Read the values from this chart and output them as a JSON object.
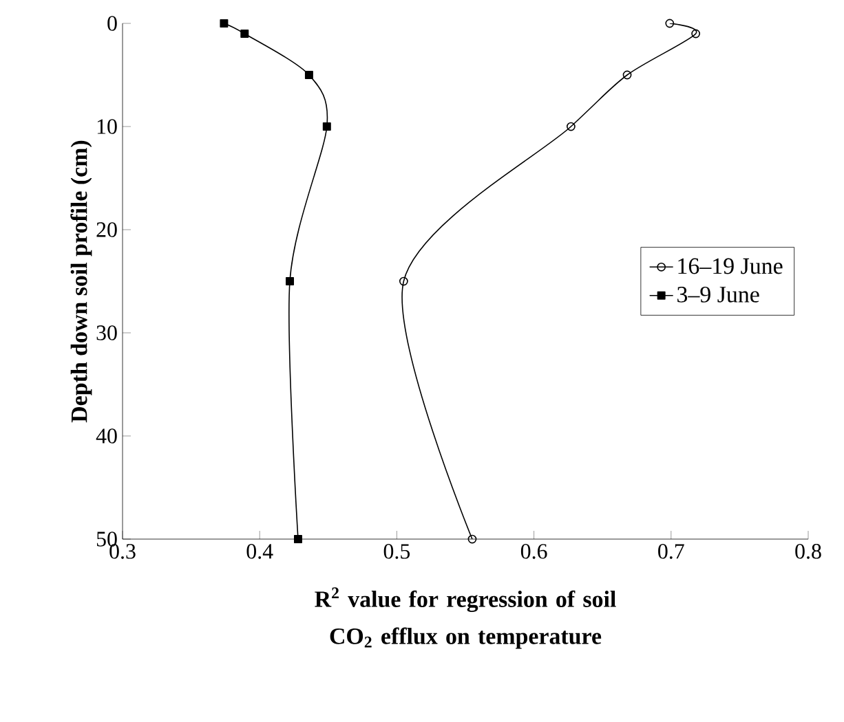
{
  "chart_data": {
    "type": "line",
    "xlabel": "R$^{2}$ value for regression of soil CO$_{2}$ efflux on temperature",
    "ylabel": "Depth down soil profile (cm)",
    "xlim": [
      0.3,
      0.8
    ],
    "xticks": [
      0.3,
      0.4,
      0.5,
      0.6,
      0.7,
      0.8
    ],
    "ylim": [
      50,
      0
    ],
    "yticks": [
      0,
      10,
      20,
      30,
      40,
      50
    ],
    "grid": false,
    "legend": "right",
    "line_style": "solid",
    "series": [
      {
        "name": "16–19 June",
        "color": "#000000",
        "marker": "circle",
        "x": [
          0.699,
          0.718,
          0.668,
          0.627,
          0.505,
          0.555
        ],
        "values": [
          0,
          1,
          5,
          10,
          25,
          50
        ]
      },
      {
        "name": "3–9 June",
        "color": "#000000",
        "marker": "square",
        "x": [
          0.374,
          0.389,
          0.436,
          0.449,
          0.422,
          0.428
        ],
        "values": [
          0,
          1,
          5,
          10,
          25,
          50
        ]
      }
    ]
  }
}
